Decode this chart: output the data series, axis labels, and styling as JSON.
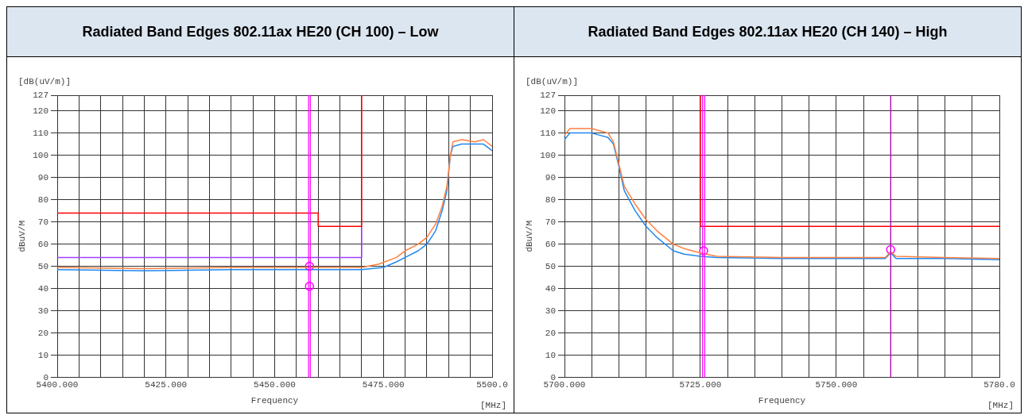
{
  "chart_data": [
    {
      "type": "line",
      "title": "Radiated Band Edges 802.11ax HE20 (CH 100) – Low",
      "xlabel": "Frequency",
      "ylabel": "dBuV/M",
      "annotations": [
        "[dB(uV/m)]",
        "[MHz]"
      ],
      "xlim": [
        5400,
        5500
      ],
      "ylim": [
        0,
        127
      ],
      "grid": true,
      "legend": false,
      "xticks": [
        {
          "value": 5400,
          "label": "5400.000"
        },
        {
          "value": 5405,
          "label": null
        },
        {
          "value": 5410,
          "label": null
        },
        {
          "value": 5415,
          "label": null
        },
        {
          "value": 5420,
          "label": null
        },
        {
          "value": 5425,
          "label": "5425.000"
        },
        {
          "value": 5430,
          "label": null
        },
        {
          "value": 5435,
          "label": null
        },
        {
          "value": 5440,
          "label": null
        },
        {
          "value": 5445,
          "label": null
        },
        {
          "value": 5450,
          "label": "5450.000"
        },
        {
          "value": 5455,
          "label": null
        },
        {
          "value": 5460,
          "label": null
        },
        {
          "value": 5465,
          "label": null
        },
        {
          "value": 5470,
          "label": null
        },
        {
          "value": 5475,
          "label": "5475.000"
        },
        {
          "value": 5480,
          "label": null
        },
        {
          "value": 5485,
          "label": null
        },
        {
          "value": 5490,
          "label": null
        },
        {
          "value": 5495,
          "label": null
        },
        {
          "value": 5500,
          "label": "5500.0"
        }
      ],
      "yticks": [
        0,
        10,
        20,
        30,
        40,
        50,
        60,
        70,
        80,
        90,
        100,
        110,
        120,
        127
      ],
      "ref_lines": [
        {
          "axis": "x",
          "value": 5457.8,
          "color": "#ff00ff"
        },
        {
          "axis": "x",
          "value": 5458.2,
          "color": "#ff00ff"
        }
      ],
      "series": [
        {
          "color": "#ff8040",
          "x": [
            5400,
            5420,
            5440,
            5470,
            5474,
            5478,
            5480,
            5483,
            5485,
            5487,
            5488.5,
            5489.6,
            5490.4,
            5491,
            5493,
            5496,
            5498,
            5500
          ],
          "values": [
            49.5,
            49,
            49.5,
            49.5,
            51,
            54,
            57,
            60,
            63,
            69,
            77,
            86,
            100,
            106,
            107,
            106,
            107,
            104
          ]
        },
        {
          "color": "#2088f0",
          "x": [
            5400,
            5420,
            5440,
            5470,
            5475,
            5478,
            5480,
            5483,
            5485,
            5487,
            5488.5,
            5489.6,
            5490.4,
            5491,
            5493,
            5496,
            5498,
            5500
          ],
          "values": [
            48.5,
            48,
            48.5,
            48.5,
            49.5,
            52,
            54,
            57,
            60,
            66,
            75,
            84,
            100,
            104,
            105,
            105,
            105,
            102
          ]
        },
        {
          "color": "#ff0000",
          "x": [
            5400,
            5460,
            5460,
            5470,
            5470
          ],
          "values": [
            74,
            74,
            68,
            68,
            127
          ]
        },
        {
          "color": "#a040ff",
          "x": [
            5400,
            5470,
            5470
          ],
          "values": [
            54,
            54,
            68
          ]
        },
        {
          "type": "scatter",
          "marker": "circle",
          "color": "#ff00ff",
          "x": [
            5458,
            5458
          ],
          "values": [
            50,
            41
          ]
        }
      ]
    },
    {
      "type": "line",
      "title": "Radiated Band Edges 802.11ax HE20 (CH 140) – High",
      "xlabel": "Frequency",
      "ylabel": "dBuV/M",
      "annotations": [
        "[dB(uV/m)]",
        "[MHz]"
      ],
      "xlim": [
        5700,
        5780
      ],
      "ylim": [
        0,
        127
      ],
      "grid": true,
      "legend": false,
      "xticks": [
        {
          "value": 5700,
          "label": "5700.000"
        },
        {
          "value": 5705,
          "label": null
        },
        {
          "value": 5710,
          "label": null
        },
        {
          "value": 5715,
          "label": null
        },
        {
          "value": 5720,
          "label": null
        },
        {
          "value": 5725,
          "label": "5725.000"
        },
        {
          "value": 5730,
          "label": null
        },
        {
          "value": 5735,
          "label": null
        },
        {
          "value": 5740,
          "label": null
        },
        {
          "value": 5745,
          "label": null
        },
        {
          "value": 5750,
          "label": "5750.000"
        },
        {
          "value": 5755,
          "label": null
        },
        {
          "value": 5760,
          "label": null
        },
        {
          "value": 5765,
          "label": null
        },
        {
          "value": 5770,
          "label": null
        },
        {
          "value": 5775,
          "label": null
        },
        {
          "value": 5780,
          "label": "5780.0"
        }
      ],
      "yticks": [
        0,
        10,
        20,
        30,
        40,
        50,
        60,
        70,
        80,
        90,
        100,
        110,
        120,
        127
      ],
      "ref_lines": [
        {
          "axis": "x",
          "value": 5725.4,
          "color": "#ff00ff"
        },
        {
          "axis": "x",
          "value": 5725.8,
          "color": "#ff00ff"
        },
        {
          "axis": "x",
          "value": 5760,
          "color": "#c000c0"
        }
      ],
      "series": [
        {
          "color": "#ff8040",
          "x": [
            5700,
            5701,
            5705,
            5708,
            5709,
            5710,
            5711,
            5713,
            5715,
            5717,
            5720,
            5722,
            5725,
            5728,
            5740,
            5759,
            5760,
            5761,
            5770,
            5780
          ],
          "values": [
            109,
            112,
            112,
            110,
            106,
            96,
            86,
            78,
            71,
            66,
            60,
            58,
            56,
            54.5,
            54,
            54,
            56.5,
            54.5,
            54,
            53.5
          ]
        },
        {
          "color": "#2088f0",
          "x": [
            5700,
            5701,
            5705,
            5708,
            5709,
            5710,
            5711,
            5713,
            5715,
            5717,
            5720,
            5722,
            5725,
            5728,
            5740,
            5759,
            5760,
            5761,
            5770,
            5780
          ],
          "values": [
            107,
            110,
            110,
            108,
            105,
            95,
            84,
            75,
            68,
            63,
            57,
            55.5,
            54.5,
            54,
            53.5,
            53.5,
            56,
            53.5,
            53.5,
            53
          ]
        },
        {
          "color": "#ff0000",
          "x": [
            5725,
            5725,
            5780
          ],
          "values": [
            127,
            68,
            68
          ]
        },
        {
          "type": "scatter",
          "marker": "circle",
          "color": "#ff00ff",
          "x": [
            5725.6,
            5760
          ],
          "values": [
            57,
            57.5
          ]
        }
      ]
    }
  ]
}
